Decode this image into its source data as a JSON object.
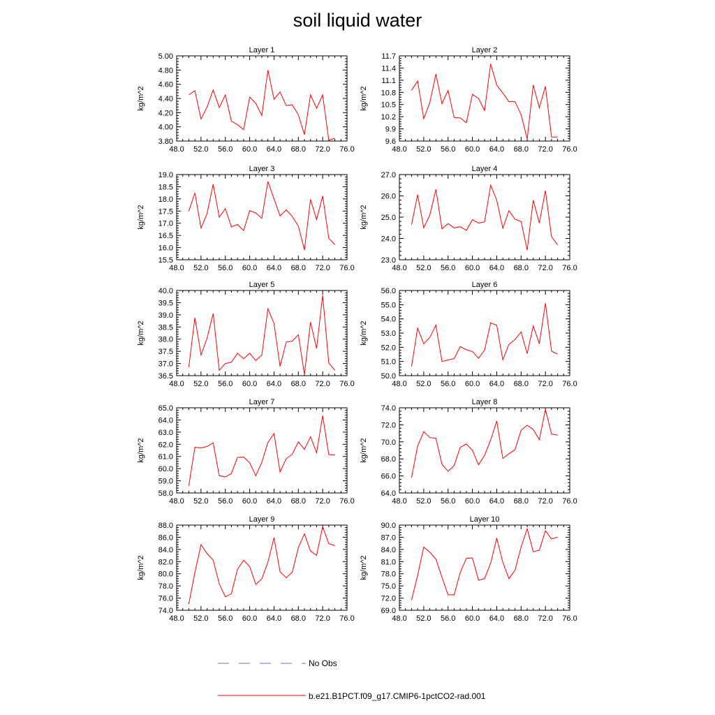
{
  "title": "soil liquid water",
  "legend": [
    {
      "label": "No Obs",
      "color": "#6a6ad8",
      "dash": true
    },
    {
      "label": "b.e21.B1PCT.f09_g17.CMIP6-1pctCO2-rad.001",
      "color": "#ff0000",
      "dash": false
    }
  ],
  "colors": {
    "series": "#ff0000",
    "axis": "#000000"
  },
  "chart_data": [
    {
      "type": "line",
      "title": "Layer 1",
      "ylabel": "kg/m^2",
      "xlim": [
        48,
        76
      ],
      "xticks": [
        "48.0",
        "52.0",
        "56.0",
        "60.0",
        "64.0",
        "68.0",
        "72.0",
        "76.0"
      ],
      "ylim": [
        3.8,
        5.0
      ],
      "yticks": [
        "3.80",
        "4.00",
        "4.20",
        "4.40",
        "4.60",
        "4.80",
        "5.00"
      ],
      "x": [
        50,
        51,
        52,
        53,
        54,
        55,
        56,
        57,
        58,
        59,
        60,
        61,
        62,
        63,
        64,
        65,
        66,
        67,
        68,
        69,
        70,
        71,
        72,
        73,
        74
      ],
      "values": [
        4.45,
        4.51,
        4.11,
        4.28,
        4.52,
        4.27,
        4.45,
        4.08,
        4.03,
        3.96,
        4.42,
        4.33,
        4.16,
        4.8,
        4.39,
        4.49,
        4.3,
        4.31,
        4.17,
        3.89,
        4.45,
        4.26,
        4.45,
        3.81,
        3.84
      ]
    },
    {
      "type": "line",
      "title": "Layer 2",
      "ylabel": "kg/m^2",
      "xlim": [
        48,
        76
      ],
      "xticks": [
        "48.0",
        "52.0",
        "56.0",
        "60.0",
        "64.0",
        "68.0",
        "72.0",
        "76.0"
      ],
      "ylim": [
        9.6,
        11.7
      ],
      "yticks": [
        "9.6",
        "9.9",
        "10.2",
        "10.5",
        "10.8",
        "11.1",
        "11.4",
        "11.7"
      ],
      "x": [
        50,
        51,
        52,
        53,
        54,
        55,
        56,
        57,
        58,
        59,
        60,
        61,
        62,
        63,
        64,
        65,
        66,
        67,
        68,
        69,
        70,
        71,
        72,
        73,
        74
      ],
      "values": [
        10.85,
        11.08,
        10.15,
        10.55,
        11.25,
        10.52,
        10.85,
        10.18,
        10.17,
        10.05,
        10.75,
        10.65,
        10.35,
        11.5,
        10.98,
        10.78,
        10.57,
        10.57,
        10.25,
        9.65,
        10.98,
        10.42,
        10.95,
        9.7,
        9.7
      ]
    },
    {
      "type": "line",
      "title": "Layer 3",
      "ylabel": "kg/m^2",
      "xlim": [
        48,
        76
      ],
      "xticks": [
        "48.0",
        "52.0",
        "56.0",
        "60.0",
        "64.0",
        "68.0",
        "72.0",
        "76.0"
      ],
      "ylim": [
        15.5,
        19.0
      ],
      "yticks": [
        "15.5",
        "16.0",
        "16.5",
        "17.0",
        "17.5",
        "18.0",
        "18.5",
        "19.0"
      ],
      "x": [
        50,
        51,
        52,
        53,
        54,
        55,
        56,
        57,
        58,
        59,
        60,
        61,
        62,
        63,
        64,
        65,
        66,
        67,
        68,
        69,
        70,
        71,
        72,
        73,
        74
      ],
      "values": [
        17.5,
        18.25,
        16.8,
        17.4,
        18.6,
        17.25,
        17.6,
        16.85,
        16.95,
        16.7,
        17.52,
        17.42,
        17.2,
        18.72,
        18.0,
        17.3,
        17.55,
        17.28,
        16.88,
        15.9,
        17.98,
        17.15,
        18.12,
        16.38,
        16.12
      ]
    },
    {
      "type": "line",
      "title": "Layer 4",
      "ylabel": "kg/m^2",
      "xlim": [
        48,
        76
      ],
      "xticks": [
        "48.0",
        "52.0",
        "56.0",
        "60.0",
        "64.0",
        "68.0",
        "72.0",
        "76.0"
      ],
      "ylim": [
        23.0,
        27.0
      ],
      "yticks": [
        "23.0",
        "24.0",
        "25.0",
        "26.0",
        "27.0"
      ],
      "x": [
        50,
        51,
        52,
        53,
        54,
        55,
        56,
        57,
        58,
        59,
        60,
        61,
        62,
        63,
        64,
        65,
        66,
        67,
        68,
        69,
        70,
        71,
        72,
        73,
        74
      ],
      "values": [
        24.65,
        26.05,
        24.5,
        25.1,
        26.3,
        24.45,
        24.7,
        24.5,
        24.55,
        24.38,
        24.88,
        24.72,
        24.78,
        26.5,
        25.8,
        24.48,
        25.3,
        24.9,
        24.8,
        23.45,
        25.8,
        24.72,
        26.25,
        24.08,
        23.7
      ]
    },
    {
      "type": "line",
      "title": "Layer 5",
      "ylabel": "kg/m^2",
      "xlim": [
        48,
        76
      ],
      "xticks": [
        "48.0",
        "52.0",
        "56.0",
        "60.0",
        "64.0",
        "68.0",
        "72.0",
        "76.0"
      ],
      "ylim": [
        36.5,
        40.0
      ],
      "yticks": [
        "36.5",
        "37.0",
        "37.5",
        "38.0",
        "38.5",
        "39.0",
        "39.5",
        "40.0"
      ],
      "x": [
        50,
        51,
        52,
        53,
        54,
        55,
        56,
        57,
        58,
        59,
        60,
        61,
        62,
        63,
        64,
        65,
        66,
        67,
        68,
        69,
        70,
        71,
        72,
        73,
        74
      ],
      "values": [
        36.85,
        38.88,
        37.35,
        38.05,
        39.05,
        36.72,
        37.0,
        37.05,
        37.42,
        37.2,
        37.42,
        37.12,
        37.35,
        39.25,
        38.65,
        36.88,
        37.88,
        37.92,
        38.18,
        36.55,
        38.7,
        37.62,
        39.8,
        37.02,
        36.72
      ]
    },
    {
      "type": "line",
      "title": "Layer 6",
      "ylabel": "kg/m^2",
      "xlim": [
        48,
        76
      ],
      "xticks": [
        "48.0",
        "52.0",
        "56.0",
        "60.0",
        "64.0",
        "68.0",
        "72.0",
        "76.0"
      ],
      "ylim": [
        50.0,
        56.0
      ],
      "yticks": [
        "50.0",
        "51.0",
        "52.0",
        "53.0",
        "54.0",
        "55.0",
        "56.0"
      ],
      "x": [
        50,
        51,
        52,
        53,
        54,
        55,
        56,
        57,
        58,
        59,
        60,
        61,
        62,
        63,
        64,
        65,
        66,
        67,
        68,
        69,
        70,
        71,
        72,
        73,
        74
      ],
      "values": [
        50.65,
        53.35,
        52.25,
        52.7,
        53.55,
        51.0,
        51.1,
        51.2,
        52.05,
        51.82,
        51.7,
        51.22,
        51.8,
        53.72,
        53.55,
        51.12,
        52.2,
        52.55,
        53.08,
        51.55,
        53.5,
        52.25,
        55.1,
        51.72,
        51.52
      ]
    },
    {
      "type": "line",
      "title": "Layer 7",
      "ylabel": "kg/m^2",
      "xlim": [
        48,
        76
      ],
      "xticks": [
        "48.0",
        "52.0",
        "56.0",
        "60.0",
        "64.0",
        "68.0",
        "72.0",
        "76.0"
      ],
      "ylim": [
        58.0,
        65.0
      ],
      "yticks": [
        "58.0",
        "59.0",
        "60.0",
        "61.0",
        "62.0",
        "63.0",
        "64.0",
        "65.0"
      ],
      "x": [
        50,
        51,
        52,
        53,
        54,
        55,
        56,
        57,
        58,
        59,
        60,
        61,
        62,
        63,
        64,
        65,
        66,
        67,
        68,
        69,
        70,
        71,
        72,
        73,
        74
      ],
      "values": [
        58.6,
        61.75,
        61.7,
        61.82,
        62.12,
        59.42,
        59.32,
        59.6,
        60.92,
        60.95,
        60.48,
        59.42,
        60.52,
        62.15,
        62.88,
        59.72,
        60.82,
        61.18,
        62.2,
        61.58,
        62.62,
        61.3,
        64.35,
        61.15,
        61.12
      ]
    },
    {
      "type": "line",
      "title": "Layer 8",
      "ylabel": "kg/m^2",
      "xlim": [
        48,
        76
      ],
      "xticks": [
        "48.0",
        "52.0",
        "56.0",
        "60.0",
        "64.0",
        "68.0",
        "72.0",
        "76.0"
      ],
      "ylim": [
        64.0,
        74.0
      ],
      "yticks": [
        "64.0",
        "66.0",
        "68.0",
        "70.0",
        "72.0",
        "74.0"
      ],
      "x": [
        50,
        51,
        52,
        53,
        54,
        55,
        56,
        57,
        58,
        59,
        60,
        61,
        62,
        63,
        64,
        65,
        66,
        67,
        68,
        69,
        70,
        71,
        72,
        73,
        74
      ],
      "values": [
        65.8,
        69.5,
        71.2,
        70.5,
        70.42,
        67.35,
        66.55,
        67.22,
        69.35,
        69.75,
        69.0,
        67.3,
        68.42,
        70.22,
        72.45,
        68.05,
        68.6,
        69.08,
        71.35,
        71.95,
        71.45,
        70.25,
        73.8,
        70.92,
        70.78
      ]
    },
    {
      "type": "line",
      "title": "Layer 9",
      "ylabel": "kg/m^2",
      "xlim": [
        48,
        76
      ],
      "xticks": [
        "48.0",
        "52.0",
        "56.0",
        "60.0",
        "64.0",
        "68.0",
        "72.0",
        "76.0"
      ],
      "ylim": [
        74.0,
        88.0
      ],
      "yticks": [
        "74.0",
        "76.0",
        "78.0",
        "80.0",
        "82.0",
        "84.0",
        "86.0",
        "88.0"
      ],
      "x": [
        50,
        51,
        52,
        53,
        54,
        55,
        56,
        57,
        58,
        59,
        60,
        61,
        62,
        63,
        64,
        65,
        66,
        67,
        68,
        69,
        70,
        71,
        72,
        73,
        74
      ],
      "values": [
        75.05,
        80.2,
        84.8,
        83.3,
        82.25,
        78.35,
        76.22,
        76.72,
        80.72,
        82.22,
        81.18,
        78.25,
        79.18,
        81.92,
        85.92,
        80.32,
        79.32,
        80.25,
        84.32,
        86.55,
        83.72,
        83.02,
        87.72,
        84.95,
        84.62
      ]
    },
    {
      "type": "line",
      "title": "Layer 10",
      "ylabel": "kg/m^2",
      "xlim": [
        48,
        76
      ],
      "xticks": [
        "48.0",
        "52.0",
        "56.0",
        "60.0",
        "64.0",
        "68.0",
        "72.0",
        "76.0"
      ],
      "ylim": [
        69.0,
        90.0
      ],
      "yticks": [
        "69.0",
        "72.0",
        "75.0",
        "78.0",
        "81.0",
        "84.0",
        "87.0",
        "90.0"
      ],
      "x": [
        50,
        51,
        52,
        53,
        54,
        55,
        56,
        57,
        58,
        59,
        60,
        61,
        62,
        63,
        64,
        65,
        66,
        67,
        68,
        69,
        70,
        71,
        72,
        73,
        74
      ],
      "values": [
        71.5,
        77.6,
        84.6,
        83.3,
        81.6,
        77.1,
        72.8,
        72.8,
        78.3,
        81.8,
        81.9,
        76.4,
        76.8,
        80.6,
        86.8,
        80.8,
        76.8,
        78.9,
        84.6,
        89.1,
        83.4,
        83.8,
        88.6,
        86.6,
        87.0
      ]
    }
  ]
}
